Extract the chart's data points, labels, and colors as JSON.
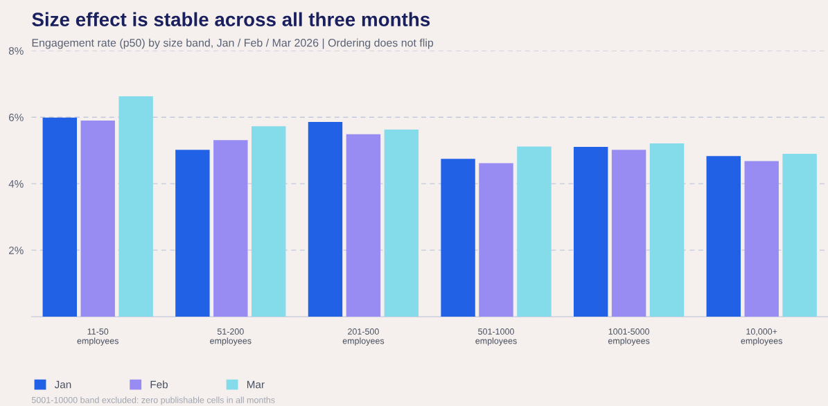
{
  "chart_data": {
    "type": "bar",
    "title": "Size effect is stable across all three months",
    "subtitle": "Engagement rate (p50) by size band, Jan / Feb / Mar 2026 | Ordering does not flip",
    "categories": [
      "11-50\nemployees",
      "51-200\nemployees",
      "201-500\nemployees",
      "501-1000\nemployees",
      "1001-5000\nemployees",
      "10,000+\nemployees"
    ],
    "series": [
      {
        "name": "Jan",
        "color": "#2161e6",
        "values": [
          5.99,
          5.02,
          5.86,
          4.75,
          5.11,
          4.83
        ]
      },
      {
        "name": "Feb",
        "color": "#988cf3",
        "values": [
          5.9,
          5.31,
          5.49,
          4.62,
          5.02,
          4.68
        ]
      },
      {
        "name": "Mar",
        "color": "#84dbea",
        "values": [
          6.63,
          5.73,
          5.63,
          5.12,
          5.21,
          4.9
        ]
      }
    ],
    "ylim": [
      0,
      8
    ],
    "yticks": [
      {
        "value": 2,
        "label": "2%"
      },
      {
        "value": 4,
        "label": "4%"
      },
      {
        "value": 6,
        "label": "6%"
      },
      {
        "value": 8,
        "label": "8%"
      }
    ],
    "grid": "y",
    "legend": "bottom left",
    "annotations": [
      "5001-10000 band excluded: zero publishable cells in all months"
    ]
  }
}
